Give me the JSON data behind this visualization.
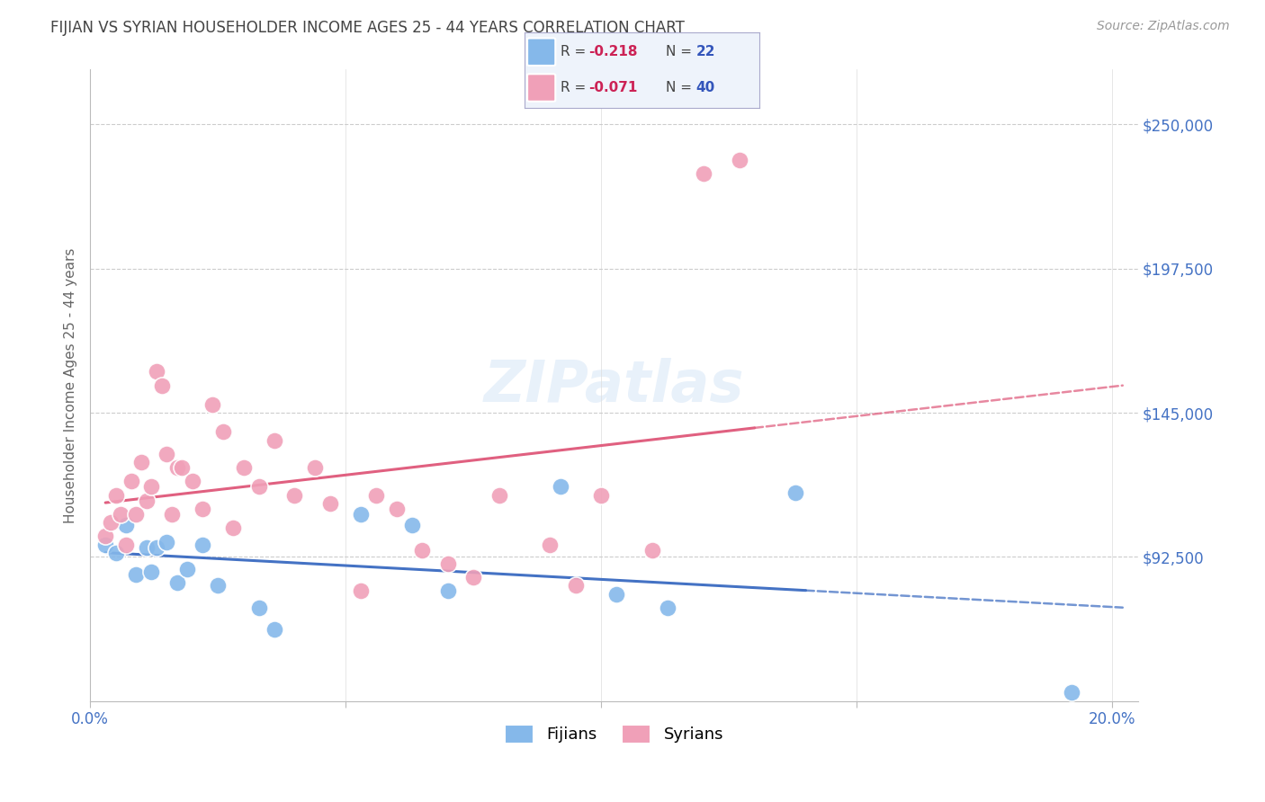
{
  "title": "FIJIAN VS SYRIAN HOUSEHOLDER INCOME AGES 25 - 44 YEARS CORRELATION CHART",
  "source": "Source: ZipAtlas.com",
  "ylabel": "Householder Income Ages 25 - 44 years",
  "xlim": [
    0.0,
    0.205
  ],
  "ylim": [
    40000,
    270000
  ],
  "yticks": [
    92500,
    145000,
    197500,
    250000
  ],
  "ytick_labels": [
    "$92,500",
    "$145,000",
    "$197,500",
    "$250,000"
  ],
  "xticks": [
    0.0,
    0.05,
    0.1,
    0.15,
    0.2
  ],
  "xtick_labels": [
    "0.0%",
    "",
    "",
    "",
    "20.0%"
  ],
  "fijians": {
    "label": "Fijians",
    "color": "#85b8ea",
    "line_color": "#4472c4",
    "R": -0.218,
    "N": 22,
    "x": [
      0.003,
      0.005,
      0.007,
      0.009,
      0.011,
      0.012,
      0.013,
      0.015,
      0.017,
      0.019,
      0.022,
      0.025,
      0.033,
      0.036,
      0.053,
      0.063,
      0.07,
      0.092,
      0.103,
      0.113,
      0.138,
      0.192
    ],
    "y": [
      97000,
      94000,
      104000,
      86000,
      96000,
      87000,
      96000,
      98000,
      83000,
      88000,
      97000,
      82000,
      74000,
      66000,
      108000,
      104000,
      80000,
      118000,
      79000,
      74000,
      116000,
      43000
    ]
  },
  "syrians": {
    "label": "Syrians",
    "color": "#f0a0b8",
    "line_color": "#e06080",
    "R": -0.071,
    "N": 40,
    "x": [
      0.003,
      0.004,
      0.005,
      0.006,
      0.007,
      0.008,
      0.009,
      0.01,
      0.011,
      0.012,
      0.013,
      0.014,
      0.015,
      0.016,
      0.017,
      0.018,
      0.02,
      0.022,
      0.024,
      0.026,
      0.028,
      0.03,
      0.033,
      0.036,
      0.04,
      0.044,
      0.047,
      0.053,
      0.056,
      0.06,
      0.065,
      0.07,
      0.075,
      0.08,
      0.09,
      0.095,
      0.1,
      0.11,
      0.12,
      0.127
    ],
    "y": [
      100000,
      105000,
      115000,
      108000,
      97000,
      120000,
      108000,
      127000,
      113000,
      118000,
      160000,
      155000,
      130000,
      108000,
      125000,
      125000,
      120000,
      110000,
      148000,
      138000,
      103000,
      125000,
      118000,
      135000,
      115000,
      125000,
      112000,
      80000,
      115000,
      110000,
      95000,
      90000,
      85000,
      115000,
      97000,
      82000,
      115000,
      95000,
      232000,
      237000
    ]
  },
  "background_color": "#ffffff",
  "grid_color": "#cccccc",
  "title_color": "#444444",
  "tick_label_color": "#4472c4"
}
